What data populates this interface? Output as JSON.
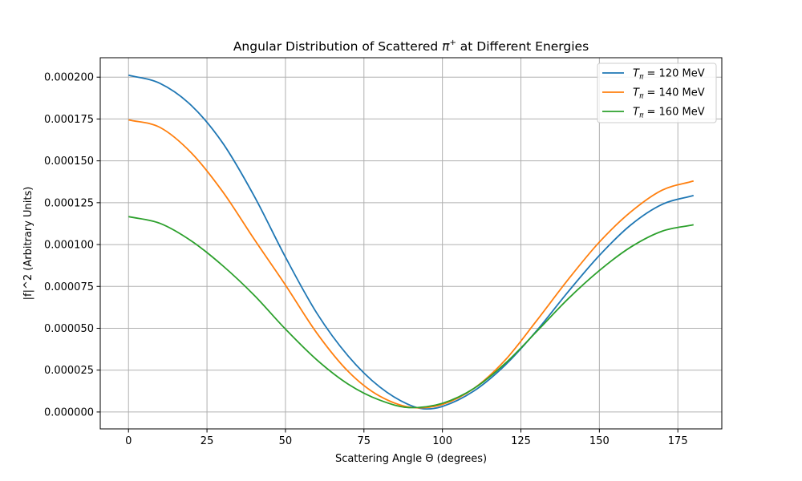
{
  "chart_data": {
    "type": "line",
    "title_parts": {
      "pre": "Angular Distribution of Scattered ",
      "symbol": "π",
      "sup": "+",
      "post": " at Different Energies"
    },
    "xlabel": "Scattering Angle Θ (degrees)",
    "ylabel": "|f|^2 (Arbitrary Units)",
    "xlim": [
      -9,
      189
    ],
    "ylim": [
      -1.01e-05,
      0.0002116
    ],
    "xticks": [
      0,
      25,
      50,
      75,
      100,
      125,
      150,
      175
    ],
    "xtick_labels": [
      "0",
      "25",
      "50",
      "75",
      "100",
      "125",
      "150",
      "175"
    ],
    "yticks": [
      0,
      2.5e-05,
      5e-05,
      7.5e-05,
      0.0001,
      0.000125,
      0.00015,
      0.000175,
      0.0002
    ],
    "ytick_labels": [
      "0.000000",
      "0.000025",
      "0.000050",
      "0.000075",
      "0.000100",
      "0.000125",
      "0.000150",
      "0.000175",
      "0.000200"
    ],
    "grid": true,
    "legend_position": "upper-right",
    "series": [
      {
        "symbol": "T",
        "sub": "π",
        "suffix": " = 120 MeV",
        "color": "#1f77b4",
        "x": [
          0,
          10,
          20,
          30,
          40,
          50,
          60,
          70,
          80,
          90,
          95,
          100,
          110,
          120,
          130,
          140,
          150,
          160,
          170,
          180
        ],
        "y": [
          0.0002012,
          0.0001963,
          0.0001831,
          0.0001607,
          0.0001291,
          9.25e-05,
          5.9e-05,
          3.34e-05,
          1.5e-05,
          3.8e-06,
          1.8e-06,
          3.3e-06,
          1.25e-05,
          2.8e-05,
          4.85e-05,
          7.17e-05,
          9.35e-05,
          0.0001117,
          0.000124,
          0.0001293
        ]
      },
      {
        "symbol": "T",
        "sub": "π",
        "suffix": " = 140 MeV",
        "color": "#ff7f0e",
        "x": [
          0,
          10,
          20,
          30,
          40,
          50,
          60,
          70,
          80,
          92,
          100,
          110,
          120,
          130,
          140,
          150,
          160,
          170,
          180
        ],
        "y": [
          0.0001745,
          0.00017,
          0.0001548,
          0.0001316,
          0.0001033,
          7.58e-05,
          4.71e-05,
          2.42e-05,
          9.5e-06,
          2.5e-06,
          4.5e-06,
          1.4e-05,
          3.1e-05,
          5.45e-05,
          7.9e-05,
          0.0001015,
          0.0001195,
          0.0001325,
          0.000138
        ]
      },
      {
        "symbol": "T",
        "sub": "π",
        "suffix": " = 160 MeV",
        "color": "#2ca02c",
        "x": [
          0,
          10,
          20,
          30,
          40,
          50,
          60,
          70,
          80,
          90,
          100,
          110,
          120,
          130,
          140,
          150,
          160,
          170,
          180
        ],
        "y": [
          0.0001167,
          0.0001127,
          0.0001022,
          8.74e-05,
          6.98e-05,
          4.95e-05,
          3.11e-05,
          1.66e-05,
          7.1e-06,
          2.6e-06,
          5.2e-06,
          1.4e-05,
          2.9e-05,
          4.8e-05,
          6.75e-05,
          8.45e-05,
          9.85e-05,
          0.000108,
          0.0001118
        ]
      }
    ]
  }
}
